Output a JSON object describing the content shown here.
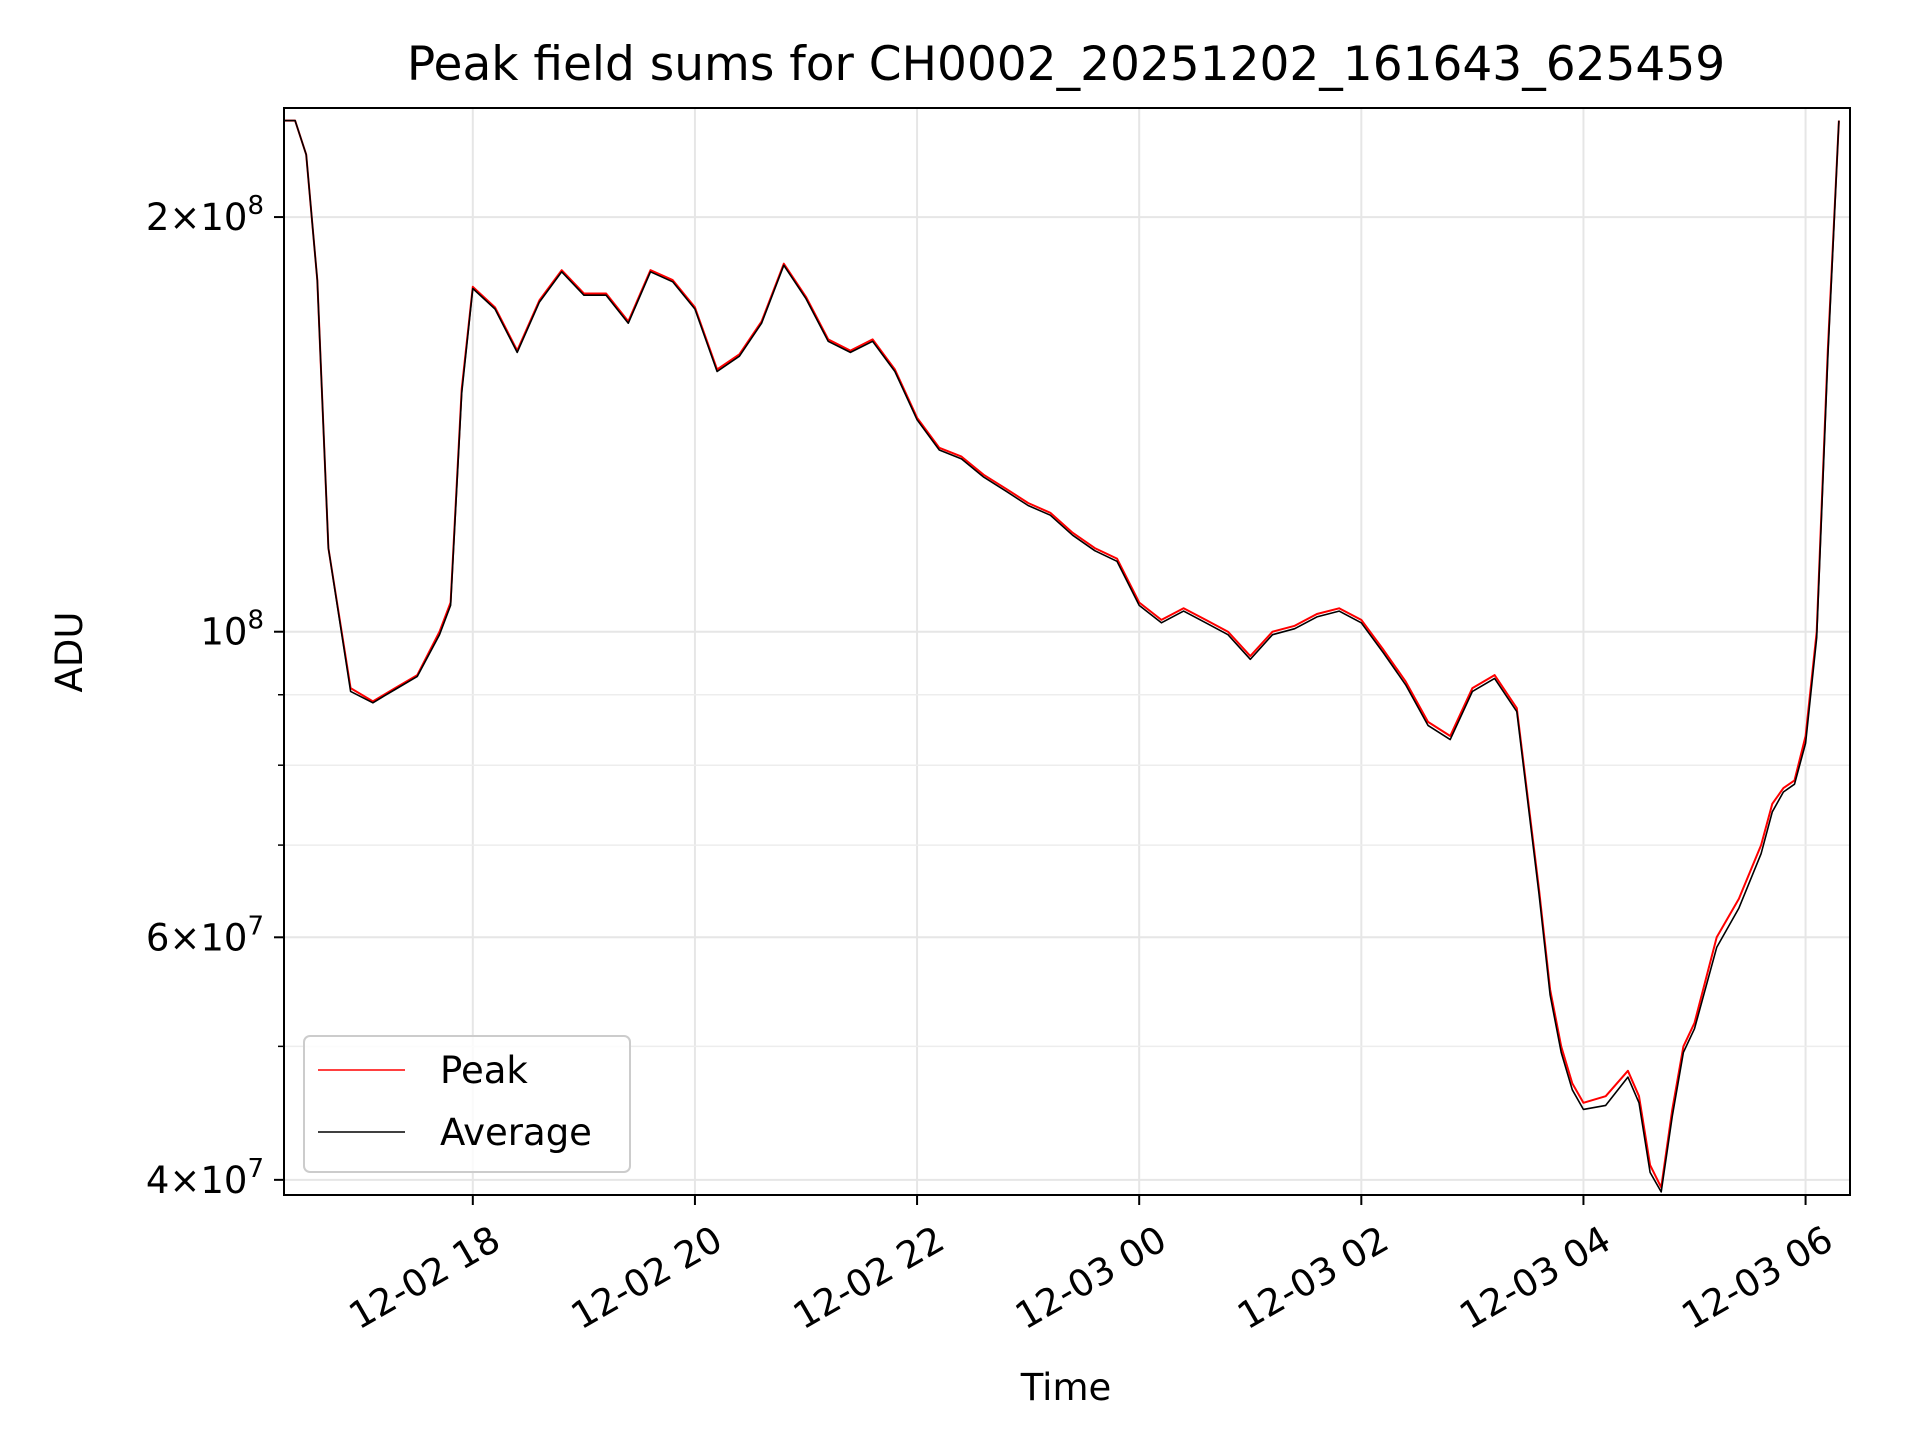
{
  "chart_data": {
    "type": "line",
    "title": "Peak field sums for CH0002_20251202_161643_625459",
    "xlabel": "Time",
    "ylabel": "ADU",
    "yscale": "log",
    "xlim": [
      16.3,
      30.4
    ],
    "ylim": [
      39000000,
      240000000
    ],
    "grid": true,
    "x_units": "hours since 12-02 00:00",
    "x_ticks": [
      {
        "value": 18,
        "label": "12-02 18"
      },
      {
        "value": 20,
        "label": "12-02 20"
      },
      {
        "value": 22,
        "label": "12-02 22"
      },
      {
        "value": 24,
        "label": "12-03 00"
      },
      {
        "value": 26,
        "label": "12-03 02"
      },
      {
        "value": 28,
        "label": "12-03 04"
      },
      {
        "value": 30,
        "label": "12-03 06"
      }
    ],
    "y_ticks": [
      {
        "value": 40000000,
        "mant": "4",
        "exp": "7"
      },
      {
        "value": 60000000,
        "mant": "6",
        "exp": "7"
      },
      {
        "value": 100000000,
        "mant": "",
        "exp": "8"
      },
      {
        "value": 200000000,
        "mant": "2",
        "exp": "8"
      }
    ],
    "y_minor_grid": [
      50000000,
      70000000,
      80000000,
      90000000
    ],
    "legend": {
      "position": "lower-left"
    },
    "colors": {
      "peak": "#ff0000",
      "average": "#000000"
    },
    "series": [
      {
        "name": "Peak",
        "x": [
          16.3,
          16.4,
          16.5,
          16.6,
          16.7,
          16.9,
          17.1,
          17.2,
          17.3,
          17.5,
          17.7,
          17.8,
          17.9,
          18.0,
          18.2,
          18.4,
          18.6,
          18.8,
          19.0,
          19.2,
          19.4,
          19.6,
          19.8,
          20.0,
          20.2,
          20.4,
          20.6,
          20.8,
          21.0,
          21.2,
          21.4,
          21.6,
          21.8,
          22.0,
          22.2,
          22.4,
          22.6,
          22.8,
          23.0,
          23.2,
          23.4,
          23.6,
          23.8,
          24.0,
          24.2,
          24.4,
          24.6,
          24.8,
          25.0,
          25.2,
          25.4,
          25.6,
          25.8,
          26.0,
          26.2,
          26.4,
          26.6,
          26.8,
          27.0,
          27.2,
          27.4,
          27.6,
          27.7,
          27.8,
          27.9,
          28.0,
          28.2,
          28.4,
          28.5,
          28.6,
          28.7,
          28.8,
          28.9,
          29.0,
          29.2,
          29.4,
          29.6,
          29.7,
          29.8,
          29.9,
          30.0,
          30.1,
          30.2,
          30.3
        ],
        "y": [
          235000000,
          235000000,
          222000000,
          180000000,
          115000000,
          91000000,
          89000000,
          90000000,
          91000000,
          93000000,
          100000000,
          105000000,
          150000000,
          178000000,
          172000000,
          160000000,
          174000000,
          183000000,
          176000000,
          176000000,
          168000000,
          183000000,
          180000000,
          172000000,
          155000000,
          159000000,
          168000000,
          185000000,
          175000000,
          163000000,
          160000000,
          163000000,
          155000000,
          143000000,
          136000000,
          134000000,
          130000000,
          127000000,
          124000000,
          122000000,
          118000000,
          115000000,
          113000000,
          105000000,
          102000000,
          104000000,
          102000000,
          100000000,
          96000000,
          100000000,
          101000000,
          103000000,
          104000000,
          102000000,
          97000000,
          92000000,
          86000000,
          84000000,
          91000000,
          93000000,
          88000000,
          65000000,
          55000000,
          50000000,
          47000000,
          45500000,
          46000000,
          48000000,
          46000000,
          41000000,
          39500000,
          45000000,
          50000000,
          52000000,
          60000000,
          64000000,
          70000000,
          75000000,
          77000000,
          78000000,
          84000000,
          100000000,
          160000000,
          235000000
        ]
      },
      {
        "name": "Average",
        "x": [
          16.3,
          16.4,
          16.5,
          16.6,
          16.7,
          16.9,
          17.1,
          17.2,
          17.3,
          17.5,
          17.7,
          17.8,
          17.9,
          18.0,
          18.2,
          18.4,
          18.6,
          18.8,
          19.0,
          19.2,
          19.4,
          19.6,
          19.8,
          20.0,
          20.2,
          20.4,
          20.6,
          20.8,
          21.0,
          21.2,
          21.4,
          21.6,
          21.8,
          22.0,
          22.2,
          22.4,
          22.6,
          22.8,
          23.0,
          23.2,
          23.4,
          23.6,
          23.8,
          24.0,
          24.2,
          24.4,
          24.6,
          24.8,
          25.0,
          25.2,
          25.4,
          25.6,
          25.8,
          26.0,
          26.2,
          26.4,
          26.6,
          26.8,
          27.0,
          27.2,
          27.4,
          27.6,
          27.7,
          27.8,
          27.9,
          28.0,
          28.2,
          28.4,
          28.5,
          28.6,
          28.7,
          28.8,
          28.9,
          29.0,
          29.2,
          29.4,
          29.6,
          29.7,
          29.8,
          29.9,
          30.0,
          30.1,
          30.2,
          30.3
        ],
        "y": [
          235000000,
          235000000,
          222000000,
          180000000,
          115000000,
          90500000,
          88800000,
          89800000,
          90800000,
          92800000,
          99500000,
          104500000,
          149000000,
          177500000,
          171500000,
          159500000,
          173500000,
          182500000,
          175500000,
          175500000,
          167500000,
          182500000,
          179500000,
          171500000,
          154500000,
          158500000,
          167500000,
          184500000,
          174500000,
          162500000,
          159500000,
          162500000,
          154500000,
          142500000,
          135500000,
          133500000,
          129500000,
          126500000,
          123500000,
          121500000,
          117500000,
          114500000,
          112500000,
          104500000,
          101500000,
          103500000,
          101500000,
          99500000,
          95500000,
          99500000,
          100500000,
          102500000,
          103500000,
          101500000,
          96500000,
          91500000,
          85500000,
          83500000,
          90500000,
          92500000,
          87500000,
          64500000,
          54500000,
          49500000,
          46500000,
          45000000,
          45300000,
          47500000,
          45500000,
          40500000,
          39200000,
          44500000,
          49500000,
          51500000,
          59000000,
          63000000,
          69000000,
          74000000,
          76500000,
          77500000,
          83000000,
          99000000,
          158000000,
          235000000
        ]
      }
    ]
  }
}
